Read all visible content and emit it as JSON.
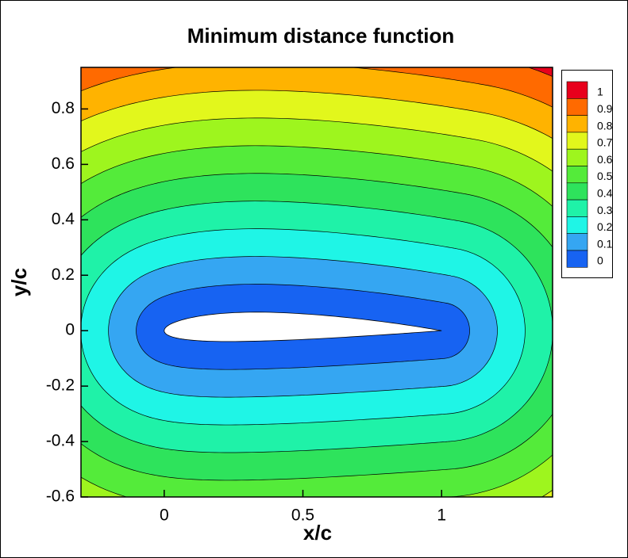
{
  "chart_data": {
    "type": "contour",
    "title": "Minimum distance function",
    "x_label": "x/c",
    "y_label": "y/c",
    "levels": [
      0,
      0.1,
      0.2,
      0.3,
      0.4,
      0.5,
      0.6,
      0.7,
      0.8,
      0.9,
      1
    ],
    "colors": [
      "#1763f2",
      "#35a6f2",
      "#1ff5e6",
      "#1ff2a8",
      "#2ee35c",
      "#54eb3a",
      "#9ef51e",
      "#e2f71c",
      "#ffb300",
      "#ff6a00",
      "#e8001c"
    ],
    "xlim": [
      -0.3,
      1.4
    ],
    "ylim": [
      -0.6,
      0.95
    ],
    "xticks": [
      0,
      0.5,
      1
    ],
    "yticks": [
      -0.6,
      -0.4,
      -0.2,
      0,
      0.2,
      0.4,
      0.6,
      0.8
    ]
  }
}
